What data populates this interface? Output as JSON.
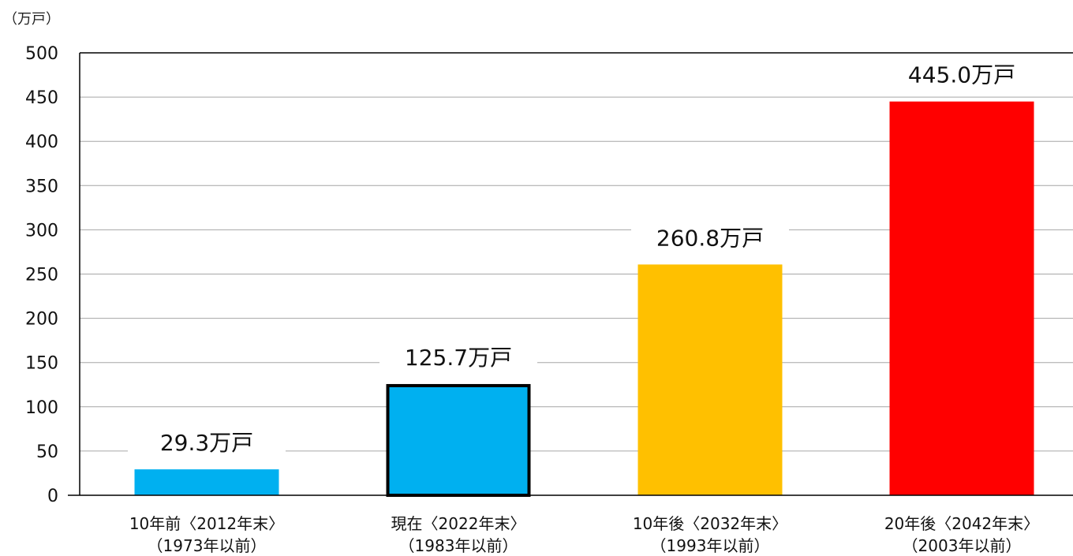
{
  "chart_data": {
    "type": "bar",
    "unit_label": "（万戸）",
    "ylim": [
      0,
      500
    ],
    "y_ticks": [
      0,
      50,
      100,
      150,
      200,
      250,
      300,
      350,
      400,
      450,
      500
    ],
    "grid": true,
    "categories": [
      {
        "line1": "10年前〈2012年末〉",
        "line2": "（1973年以前）"
      },
      {
        "line1": "現在〈2022年末〉",
        "line2": "（1983年以前）"
      },
      {
        "line1": "10年後〈2032年末〉",
        "line2": "（1993年以前）"
      },
      {
        "line1": "20年後〈2042年末〉",
        "line2": "（2003年以前）"
      }
    ],
    "values": [
      29.3,
      125.7,
      260.8,
      445.0
    ],
    "data_labels": [
      "29.3万戸",
      "125.7万戸",
      "260.8万戸",
      "445.0万戸"
    ],
    "colors": [
      "#00b0f0",
      "#00b0f0",
      "#ffc000",
      "#ff0000"
    ],
    "highlighted_index": 1
  }
}
